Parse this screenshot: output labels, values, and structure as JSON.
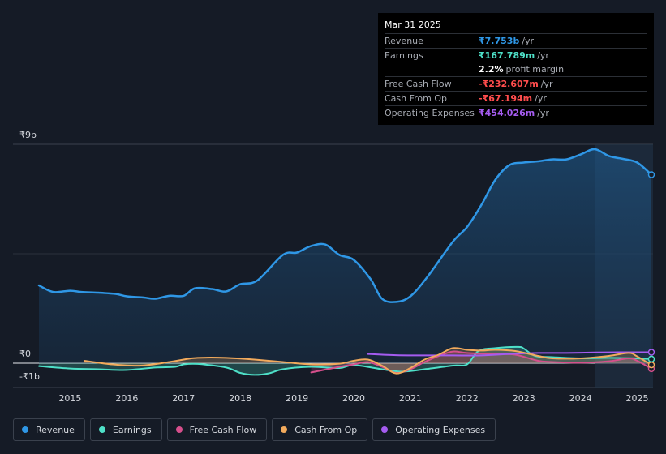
{
  "tooltip": {
    "date": "Mar 31 2025",
    "rows": [
      {
        "label": "Revenue",
        "value": "₹7.753b",
        "unit": "/yr",
        "color": "#2f97e6"
      },
      {
        "label": "Earnings",
        "value": "₹167.789m",
        "unit": "/yr",
        "color": "#4ee0c8"
      },
      {
        "label": "",
        "value": "2.2%",
        "unit": "profit margin",
        "color": "#ffffff"
      },
      {
        "label": "Free Cash Flow",
        "value": "-₹232.607m",
        "unit": "/yr",
        "color": "#ff4d4d"
      },
      {
        "label": "Cash From Op",
        "value": "-₹67.194m",
        "unit": "/yr",
        "color": "#ff4d4d"
      },
      {
        "label": "Operating Expenses",
        "value": "₹454.026m",
        "unit": "/yr",
        "color": "#a55cf0"
      }
    ]
  },
  "legend": [
    {
      "label": "Revenue",
      "color": "#2f97e6"
    },
    {
      "label": "Earnings",
      "color": "#4ee0c8"
    },
    {
      "label": "Free Cash Flow",
      "color": "#d64f8c"
    },
    {
      "label": "Cash From Op",
      "color": "#f2aa5c"
    },
    {
      "label": "Operating Expenses",
      "color": "#a55cf0"
    }
  ],
  "chart_data": {
    "type": "area",
    "title": "",
    "xlabel": "",
    "ylabel": "",
    "y_tick_labels": [
      "₹9b",
      "₹0",
      "-₹1b"
    ],
    "x_tick_labels": [
      "2015",
      "2016",
      "2017",
      "2018",
      "2019",
      "2020",
      "2021",
      "2022",
      "2023",
      "2024",
      "2025"
    ],
    "xlim": [
      2014.45,
      2025.25
    ],
    "ylim": [
      -1,
      9
    ],
    "grid": true,
    "legend_position": "bottom",
    "series": [
      {
        "name": "Revenue",
        "color": "#2f97e6",
        "points": [
          [
            2014.45,
            3.2
          ],
          [
            2014.7,
            2.93
          ],
          [
            2015.0,
            2.98
          ],
          [
            2015.2,
            2.93
          ],
          [
            2015.5,
            2.9
          ],
          [
            2015.8,
            2.85
          ],
          [
            2016.0,
            2.75
          ],
          [
            2016.3,
            2.7
          ],
          [
            2016.5,
            2.65
          ],
          [
            2016.75,
            2.77
          ],
          [
            2017.0,
            2.77
          ],
          [
            2017.2,
            3.08
          ],
          [
            2017.5,
            3.05
          ],
          [
            2017.75,
            2.95
          ],
          [
            2018.0,
            3.25
          ],
          [
            2018.3,
            3.4
          ],
          [
            2018.75,
            4.45
          ],
          [
            2019.0,
            4.55
          ],
          [
            2019.25,
            4.82
          ],
          [
            2019.5,
            4.88
          ],
          [
            2019.75,
            4.45
          ],
          [
            2020.0,
            4.25
          ],
          [
            2020.3,
            3.45
          ],
          [
            2020.5,
            2.65
          ],
          [
            2020.75,
            2.52
          ],
          [
            2021.0,
            2.75
          ],
          [
            2021.3,
            3.55
          ],
          [
            2021.75,
            5.0
          ],
          [
            2022.0,
            5.6
          ],
          [
            2022.25,
            6.5
          ],
          [
            2022.5,
            7.55
          ],
          [
            2022.75,
            8.15
          ],
          [
            2023.0,
            8.25
          ],
          [
            2023.25,
            8.3
          ],
          [
            2023.5,
            8.38
          ],
          [
            2023.75,
            8.38
          ],
          [
            2024.0,
            8.58
          ],
          [
            2024.25,
            8.8
          ],
          [
            2024.5,
            8.52
          ],
          [
            2024.75,
            8.4
          ],
          [
            2025.0,
            8.25
          ],
          [
            2025.25,
            7.75
          ]
        ]
      },
      {
        "name": "Earnings",
        "color": "#4ee0c8",
        "points": [
          [
            2014.45,
            -0.12
          ],
          [
            2015.0,
            -0.22
          ],
          [
            2015.5,
            -0.25
          ],
          [
            2016.0,
            -0.28
          ],
          [
            2016.5,
            -0.18
          ],
          [
            2016.85,
            -0.15
          ],
          [
            2017.0,
            -0.05
          ],
          [
            2017.25,
            -0.03
          ],
          [
            2017.75,
            -0.18
          ],
          [
            2018.0,
            -0.4
          ],
          [
            2018.25,
            -0.48
          ],
          [
            2018.5,
            -0.42
          ],
          [
            2018.75,
            -0.25
          ],
          [
            2019.25,
            -0.15
          ],
          [
            2019.75,
            -0.2
          ],
          [
            2020.0,
            -0.08
          ],
          [
            2020.5,
            -0.25
          ],
          [
            2020.85,
            -0.35
          ],
          [
            2021.25,
            -0.25
          ],
          [
            2021.75,
            -0.1
          ],
          [
            2022.0,
            -0.05
          ],
          [
            2022.2,
            0.5
          ],
          [
            2022.5,
            0.62
          ],
          [
            2022.9,
            0.67
          ],
          [
            2023.0,
            0.6
          ],
          [
            2023.2,
            0.3
          ],
          [
            2023.5,
            0.25
          ],
          [
            2024.0,
            0.2
          ],
          [
            2024.5,
            0.22
          ],
          [
            2025.0,
            0.2
          ],
          [
            2025.25,
            0.17
          ]
        ]
      },
      {
        "name": "Free Cash Flow",
        "color": "#d64f8c",
        "points": [
          [
            2019.25,
            -0.38
          ],
          [
            2019.75,
            -0.15
          ],
          [
            2020.0,
            -0.05
          ],
          [
            2020.25,
            0.05
          ],
          [
            2020.5,
            -0.15
          ],
          [
            2020.75,
            -0.4
          ],
          [
            2021.0,
            -0.25
          ],
          [
            2021.25,
            0.05
          ],
          [
            2021.5,
            0.3
          ],
          [
            2021.75,
            0.48
          ],
          [
            2022.0,
            0.42
          ],
          [
            2022.5,
            0.38
          ],
          [
            2022.85,
            0.35
          ],
          [
            2023.25,
            0.1
          ],
          [
            2023.5,
            0.05
          ],
          [
            2024.0,
            0.02
          ],
          [
            2024.5,
            0.08
          ],
          [
            2024.85,
            0.2
          ],
          [
            2025.0,
            0.1
          ],
          [
            2025.25,
            -0.23
          ]
        ]
      },
      {
        "name": "Cash From Op",
        "color": "#f2aa5c",
        "points": [
          [
            2015.25,
            0.1
          ],
          [
            2015.75,
            -0.05
          ],
          [
            2016.25,
            -0.1
          ],
          [
            2016.75,
            0.05
          ],
          [
            2017.0,
            0.15
          ],
          [
            2017.25,
            0.22
          ],
          [
            2017.75,
            0.22
          ],
          [
            2018.25,
            0.15
          ],
          [
            2018.75,
            0.05
          ],
          [
            2019.25,
            -0.05
          ],
          [
            2019.75,
            -0.02
          ],
          [
            2020.0,
            0.1
          ],
          [
            2020.25,
            0.15
          ],
          [
            2020.5,
            -0.1
          ],
          [
            2020.75,
            -0.42
          ],
          [
            2021.0,
            -0.2
          ],
          [
            2021.25,
            0.15
          ],
          [
            2021.5,
            0.35
          ],
          [
            2021.75,
            0.62
          ],
          [
            2022.0,
            0.55
          ],
          [
            2022.25,
            0.52
          ],
          [
            2022.5,
            0.55
          ],
          [
            2022.85,
            0.5
          ],
          [
            2023.25,
            0.3
          ],
          [
            2023.5,
            0.2
          ],
          [
            2024.0,
            0.2
          ],
          [
            2024.5,
            0.3
          ],
          [
            2024.85,
            0.42
          ],
          [
            2025.0,
            0.28
          ],
          [
            2025.25,
            -0.07
          ]
        ]
      },
      {
        "name": "Operating Expenses",
        "color": "#a55cf0",
        "points": [
          [
            2020.25,
            0.38
          ],
          [
            2020.75,
            0.33
          ],
          [
            2021.25,
            0.32
          ],
          [
            2021.75,
            0.32
          ],
          [
            2022.25,
            0.32
          ],
          [
            2022.75,
            0.38
          ],
          [
            2023.25,
            0.42
          ],
          [
            2023.75,
            0.42
          ],
          [
            2024.25,
            0.44
          ],
          [
            2024.75,
            0.45
          ],
          [
            2025.25,
            0.45
          ]
        ]
      }
    ]
  }
}
